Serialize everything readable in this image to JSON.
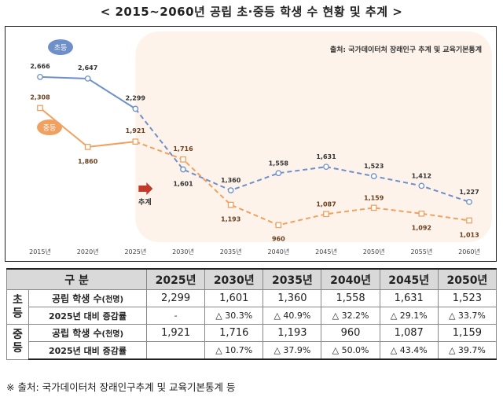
{
  "title": "< 2015~2060년 공립 초·중등 학생 수 현황 및 추계 >",
  "source_note": "출처: 국가데이터처 장래인구 추계 및 교육기본통계",
  "projection_label": "추계",
  "colors": {
    "elementary": "#6f8fc9",
    "middle": "#f0a060",
    "projection_bg": "#fdf3ea",
    "arrow": "#c0392b"
  },
  "chart_data": {
    "type": "line",
    "categories": [
      "2015년",
      "2020년",
      "2025년",
      "2030년",
      "2035년",
      "2040년",
      "2045년",
      "2050년",
      "2055년",
      "2060년"
    ],
    "projection_start": "2025년",
    "series": [
      {
        "name": "초등",
        "values": [
          2666,
          2647,
          2299,
          1601,
          1360,
          1558,
          1631,
          1523,
          1412,
          1227
        ],
        "labels": [
          "2,666",
          "2,647",
          "2,299",
          "1,601",
          "1,360",
          "1,558",
          "1,631",
          "1,523",
          "1,412",
          "1,227"
        ]
      },
      {
        "name": "중등",
        "values": [
          2308,
          1860,
          1921,
          1716,
          1193,
          960,
          1087,
          1159,
          1092,
          1013
        ],
        "labels": [
          "2,308",
          "1,860",
          "1,921",
          "1,716",
          "1,193",
          "960",
          "1,087",
          "1,159",
          "1,092",
          "1,013"
        ]
      }
    ],
    "ylim": [
      800,
      2900
    ]
  },
  "table": {
    "header": [
      "구 분",
      "2025년",
      "2030년",
      "2035년",
      "2040년",
      "2045년",
      "2050년"
    ],
    "groups": [
      {
        "name": "초등",
        "rows": [
          {
            "label": "공립 학생 수",
            "unit": "(천명)",
            "values": [
              "2,299",
              "1,601",
              "1,360",
              "1,558",
              "1,631",
              "1,523"
            ]
          },
          {
            "label": "2025년 대비 증감률",
            "values": [
              "-",
              "△ 30.3%",
              "△ 40.9%",
              "△ 32.2%",
              "△ 29.1%",
              "△ 33.7%"
            ]
          }
        ]
      },
      {
        "name": "중등",
        "rows": [
          {
            "label": "공립 학생 수",
            "unit": "(천명)",
            "values": [
              "1,921",
              "1,716",
              "1,193",
              "960",
              "1,087",
              "1,159"
            ]
          },
          {
            "label": "2025년 대비 증감률",
            "values": [
              "",
              "△ 10.7%",
              "△ 37.9%",
              "△ 50.0%",
              "△ 43.4%",
              "△ 39.7%"
            ]
          }
        ]
      }
    ]
  },
  "footnote": "※ 출처: 국가데이터처 장래인구추계 및 교육기본통계 등"
}
